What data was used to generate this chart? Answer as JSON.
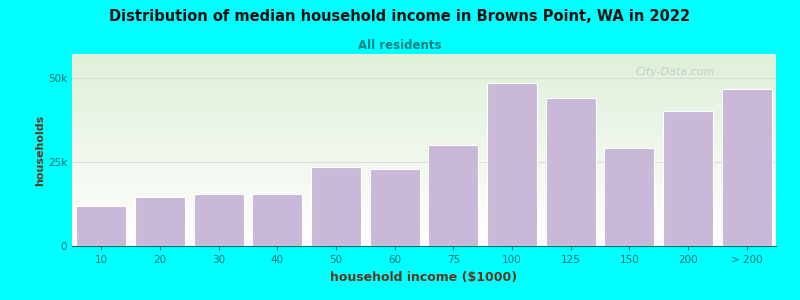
{
  "title": "Distribution of median household income in Browns Point, WA in 2022",
  "subtitle": "All residents",
  "xlabel": "household income ($1000)",
  "ylabel": "households",
  "background_color": "#00FFFF",
  "plot_bg_top_color": "#dff0d8",
  "plot_bg_bottom_color": "#ffffff",
  "bar_color": "#c9b8d8",
  "bar_edge_color": "#ffffff",
  "title_color": "#111111",
  "subtitle_color": "#008080",
  "axis_label_color": "#5c3a1e",
  "tick_color": "#007070",
  "grid_color": "#d0d0d0",
  "watermark_color": "#b8c8c8",
  "categories": [
    "10",
    "20",
    "30",
    "40",
    "50",
    "60",
    "75",
    "100",
    "125",
    "150",
    "200",
    "> 200"
  ],
  "values": [
    12000,
    14500,
    15500,
    15500,
    23500,
    23000,
    30000,
    48500,
    44000,
    29000,
    40000,
    46500
  ],
  "ytick_labels": [
    "0",
    "25k",
    "50k"
  ],
  "ytick_values": [
    0,
    25000,
    50000
  ],
  "ylim": [
    0,
    57000
  ],
  "watermark": "City-Data.com"
}
